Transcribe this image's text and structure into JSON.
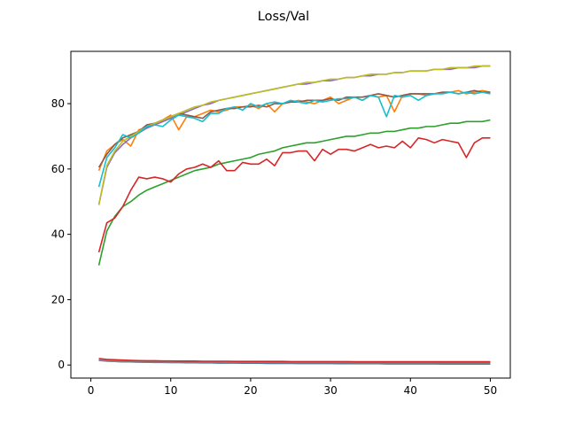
{
  "chart_data": {
    "type": "line",
    "title": "Loss/Val",
    "xlabel": "",
    "ylabel": "",
    "xlim": [
      -2.5,
      52.5
    ],
    "ylim": [
      -4.0,
      96.0
    ],
    "xticks": [
      0,
      10,
      20,
      30,
      40,
      50
    ],
    "yticks": [
      0,
      20,
      40,
      60,
      80
    ],
    "grid": false,
    "legend": "none",
    "colors": [
      "#1f77b4",
      "#ff7f0e",
      "#2ca02c",
      "#d62728",
      "#9467bd",
      "#8c564b",
      "#e377c2",
      "#7f7f7f",
      "#bcbd22",
      "#17becf"
    ],
    "x": [
      1,
      2,
      3,
      4,
      5,
      6,
      7,
      8,
      9,
      10,
      11,
      12,
      13,
      14,
      15,
      16,
      17,
      18,
      19,
      20,
      21,
      22,
      23,
      24,
      25,
      26,
      27,
      28,
      29,
      30,
      31,
      32,
      33,
      34,
      35,
      36,
      37,
      38,
      39,
      40,
      41,
      42,
      43,
      44,
      45,
      46,
      47,
      48,
      49,
      50
    ],
    "series": [
      {
        "color": "#1f77b4",
        "values": [
          1.5,
          1.2,
          1.1,
          1.0,
          0.95,
          0.9,
          0.85,
          0.8,
          0.8,
          0.75,
          0.75,
          0.7,
          0.7,
          0.65,
          0.65,
          0.6,
          0.6,
          0.6,
          0.55,
          0.55,
          0.55,
          0.5,
          0.5,
          0.5,
          0.5,
          0.45,
          0.45,
          0.45,
          0.45,
          0.45,
          0.4,
          0.4,
          0.4,
          0.4,
          0.4,
          0.4,
          0.35,
          0.35,
          0.35,
          0.35,
          0.35,
          0.35,
          0.35,
          0.3,
          0.3,
          0.3,
          0.3,
          0.3,
          0.3,
          0.3
        ]
      },
      {
        "color": "#ff7f0e",
        "values": [
          59.5,
          65.5,
          67.5,
          69,
          67,
          72,
          72.5,
          74,
          75,
          76.5,
          72,
          76,
          76,
          77,
          78,
          77.5,
          78,
          79,
          79,
          79.5,
          78.5,
          80,
          77.5,
          80,
          80.5,
          81,
          80.5,
          80,
          81,
          82,
          80,
          81,
          82,
          81,
          82.5,
          82,
          82.5,
          77.5,
          82.5,
          83,
          83,
          82.5,
          83,
          83.5,
          83.5,
          84,
          83,
          83.5,
          84,
          83.5
        ]
      },
      {
        "color": "#2ca02c",
        "values": [
          30.5,
          41,
          45.5,
          48.5,
          50,
          52,
          53.5,
          54.5,
          55.5,
          56.5,
          57.5,
          58.5,
          59.5,
          60,
          60.5,
          61.5,
          62,
          62.5,
          63,
          63.5,
          64.5,
          65,
          65.5,
          66.5,
          67,
          67.5,
          68,
          68,
          68.5,
          69,
          69.5,
          70,
          70,
          70.5,
          71,
          71,
          71.5,
          71.5,
          72,
          72.5,
          72.5,
          73,
          73,
          73.5,
          74,
          74,
          74.5,
          74.5,
          74.5,
          75
        ]
      },
      {
        "color": "#d62728",
        "values": [
          34.5,
          43.5,
          45,
          48.5,
          53.5,
          57.5,
          57,
          57.5,
          57,
          56,
          58.5,
          60,
          60.5,
          61.5,
          60.5,
          62.5,
          59.5,
          59.5,
          62,
          61.5,
          61.5,
          63,
          61,
          65,
          65,
          65.5,
          65.5,
          62.5,
          66,
          64.5,
          66,
          66,
          65.5,
          66.5,
          67.5,
          66.5,
          67,
          66.5,
          68.5,
          66.5,
          69.5,
          69,
          68,
          69,
          68.5,
          68,
          63.5,
          68,
          69.5,
          69.5
        ]
      },
      {
        "color": "#9467bd",
        "values": [
          49,
          60.5,
          65,
          67.5,
          69.5,
          71,
          72.5,
          73.5,
          74.5,
          75.5,
          76.5,
          77.5,
          78.5,
          79.5,
          80,
          81,
          81.5,
          82,
          82.5,
          83,
          83.5,
          84,
          84.5,
          85,
          85.5,
          86,
          86,
          86.5,
          87,
          87,
          87.5,
          88,
          88,
          88.5,
          88.5,
          89,
          89,
          89.5,
          89.5,
          90,
          90,
          90,
          90.5,
          90.5,
          90.5,
          91,
          91,
          91,
          91.5,
          91.5
        ]
      },
      {
        "color": "#8c564b",
        "values": [
          60.5,
          64.5,
          67.5,
          69.5,
          70.5,
          71.5,
          73.5,
          74,
          75,
          76,
          77,
          76.5,
          76,
          75.5,
          77.5,
          78,
          78.5,
          78.5,
          79,
          79,
          79.5,
          79,
          80,
          80,
          80.5,
          80.5,
          81,
          81,
          81,
          81.5,
          81,
          82,
          82,
          82,
          82.5,
          83,
          82.5,
          82,
          82.5,
          83,
          83,
          83,
          83,
          83.5,
          83.5,
          83,
          83.5,
          84,
          83.5,
          83.5
        ]
      },
      {
        "color": "#e377c2",
        "values": [
          1.8,
          1.5,
          1.4,
          1.3,
          1.2,
          1.15,
          1.1,
          1.1,
          1.05,
          1.05,
          1.0,
          1.0,
          1.0,
          0.95,
          0.95,
          0.95,
          0.95,
          0.9,
          0.9,
          0.9,
          0.9,
          0.9,
          0.9,
          0.9,
          0.85,
          0.85,
          0.85,
          0.85,
          0.85,
          0.85,
          0.85,
          0.85,
          0.85,
          0.8,
          0.8,
          0.8,
          0.8,
          0.8,
          0.8,
          0.8,
          0.8,
          0.8,
          0.8,
          0.8,
          0.8,
          0.8,
          0.8,
          0.8,
          0.8,
          0.8
        ]
      },
      {
        "color": "#7f7f7f",
        "values": [
          1.4,
          1.2,
          1.1,
          1.0,
          0.95,
          0.9,
          0.9,
          0.85,
          0.85,
          0.8,
          0.8,
          0.8,
          0.75,
          0.75,
          0.75,
          0.75,
          0.7,
          0.7,
          0.7,
          0.7,
          0.7,
          0.7,
          0.7,
          0.65,
          0.65,
          0.65,
          0.65,
          0.65,
          0.65,
          0.65,
          0.65,
          0.65,
          0.6,
          0.6,
          0.6,
          0.6,
          0.6,
          0.6,
          0.6,
          0.6,
          0.6,
          0.6,
          0.6,
          0.6,
          0.6,
          0.6,
          0.6,
          0.6,
          0.6,
          0.6
        ]
      },
      {
        "color": "#bcbd22",
        "values": [
          49,
          61,
          65.5,
          68.5,
          70,
          71.5,
          73,
          74,
          75,
          76,
          77,
          78,
          79,
          79.5,
          80.5,
          81,
          81.5,
          82,
          82.5,
          83,
          83.5,
          84,
          84.5,
          85,
          85.5,
          86,
          86.5,
          86.5,
          87,
          87.5,
          87.5,
          88,
          88,
          88.5,
          89,
          89,
          89,
          89.5,
          89.5,
          90,
          90,
          90,
          90.5,
          90.5,
          91,
          91,
          91,
          91.5,
          91.5,
          91.5
        ]
      },
      {
        "color": "#17becf",
        "values": [
          54.5,
          63.5,
          66.5,
          70.5,
          69.5,
          71,
          73,
          73.5,
          73,
          75,
          76.5,
          76,
          75.5,
          74.5,
          77,
          77,
          78.5,
          79,
          78,
          80,
          79,
          80,
          80.5,
          80,
          81,
          80.5,
          80,
          81,
          80.5,
          81,
          81.5,
          81.5,
          82,
          81,
          82.5,
          82,
          76,
          82.5,
          82,
          82.5,
          81,
          82.5,
          83,
          83,
          83.5,
          83,
          83.5,
          83,
          83.5,
          83
        ]
      },
      {
        "color": "#d62728",
        "values": [
          2.0,
          1.7,
          1.6,
          1.5,
          1.4,
          1.35,
          1.3,
          1.3,
          1.25,
          1.25,
          1.2,
          1.2,
          1.2,
          1.15,
          1.15,
          1.15,
          1.15,
          1.1,
          1.1,
          1.1,
          1.1,
          1.1,
          1.1,
          1.1,
          1.05,
          1.05,
          1.05,
          1.05,
          1.05,
          1.05,
          1.05,
          1.05,
          1.0,
          1.0,
          1.0,
          1.0,
          1.0,
          1.0,
          1.0,
          1.0,
          1.0,
          1.0,
          1.0,
          1.0,
          1.0,
          1.0,
          1.0,
          1.0,
          1.0,
          1.0
        ]
      }
    ]
  }
}
